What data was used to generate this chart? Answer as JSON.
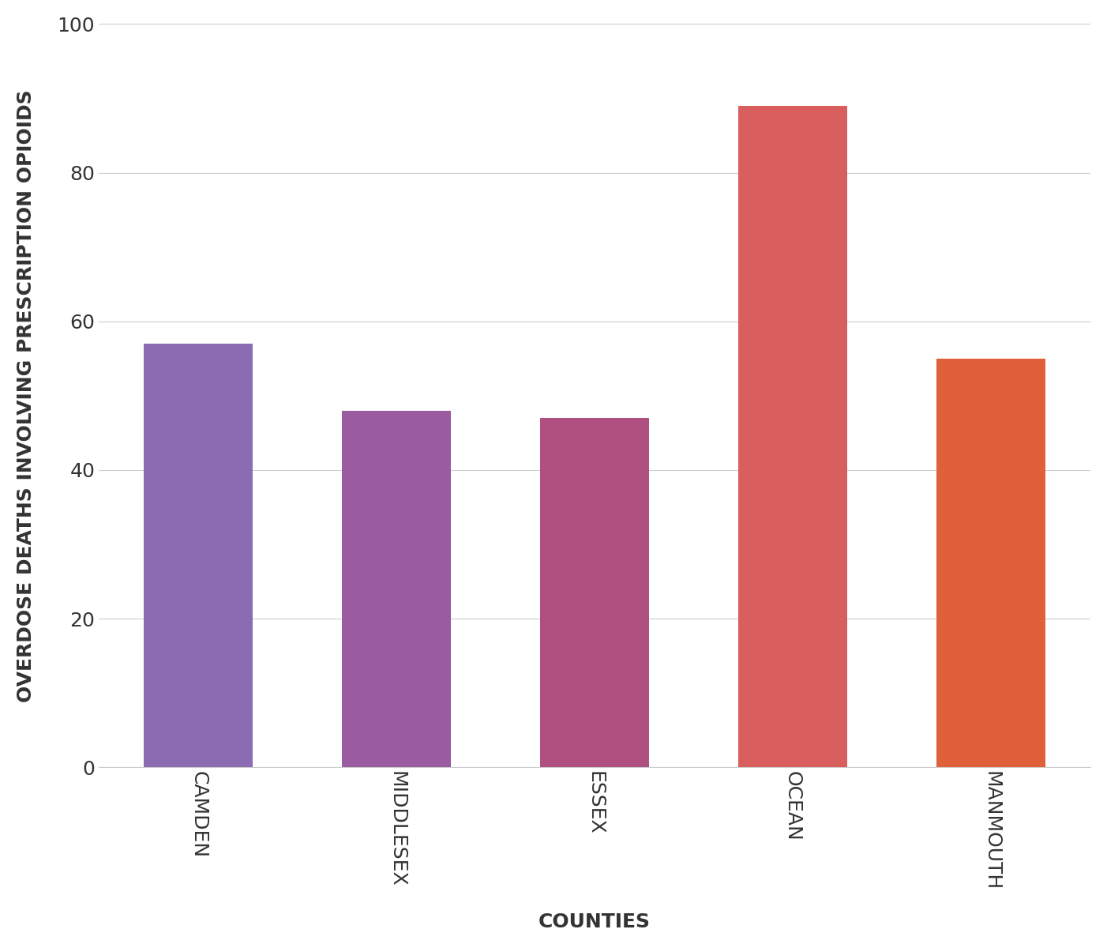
{
  "categories": [
    "CAMDEN",
    "MIDDLESEX",
    "ESSEX",
    "OCEAN",
    "MANMOUTH"
  ],
  "values": [
    57,
    48,
    47,
    89,
    55
  ],
  "bar_colors": [
    "#8B6BB1",
    "#9B5BA0",
    "#B05080",
    "#D95F5F",
    "#E0603A"
  ],
  "xlabel": "COUNTIES",
  "ylabel": "OVERDOSE DEATHS INVOLVING PRESCRIPTION OPIOIDS",
  "ylim": [
    0,
    100
  ],
  "yticks": [
    0,
    20,
    40,
    60,
    80,
    100
  ],
  "background_color": "#ffffff",
  "grid_color": "#cccccc",
  "tick_label_fontsize": 18,
  "axis_label_fontsize": 18,
  "bar_width": 0.55
}
